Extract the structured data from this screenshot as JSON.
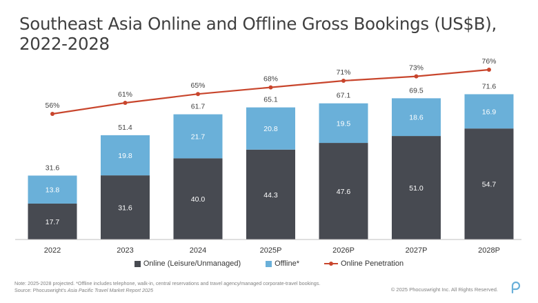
{
  "title": "Southeast Asia Online and Offline Gross Bookings (US$B), 2022-2028",
  "colors": {
    "online": "#474a51",
    "offline": "#6ab0d9",
    "penetration": "#c8452c"
  },
  "chart_data": {
    "type": "bar",
    "stacked": true,
    "categories": [
      "2022",
      "2023",
      "2024",
      "2025P",
      "2026P",
      "2027P",
      "2028P"
    ],
    "series": [
      {
        "name": "Online (Leisure/Unmanaged)",
        "values": [
          17.7,
          31.6,
          40.0,
          44.3,
          47.6,
          51.0,
          54.7
        ]
      },
      {
        "name": "Offline*",
        "values": [
          13.8,
          19.8,
          21.7,
          20.8,
          19.5,
          18.6,
          16.9
        ]
      }
    ],
    "totals": [
      31.6,
      51.4,
      61.7,
      65.1,
      67.1,
      69.5,
      71.6
    ],
    "line_series": {
      "name": "Online Penetration",
      "values": [
        56,
        61,
        65,
        68,
        71,
        73,
        76
      ],
      "unit": "%"
    },
    "ylim": [
      0,
      80
    ],
    "legend": [
      "Online (Leisure/Unmanaged)",
      "Offline*",
      "Online Penetration"
    ]
  },
  "footer": {
    "note": "Note: 2025-2028 projected. *Offline includes telephone, walk-in, central reservations and travel agency/managed corporate-travel bookings.",
    "source_prefix": "Source: Phocuswright's ",
    "source_title": "Asia Pacific Travel Market Report 2025",
    "copyright": "© 2025 Phocuswright Inc. All Rights Reserved."
  }
}
